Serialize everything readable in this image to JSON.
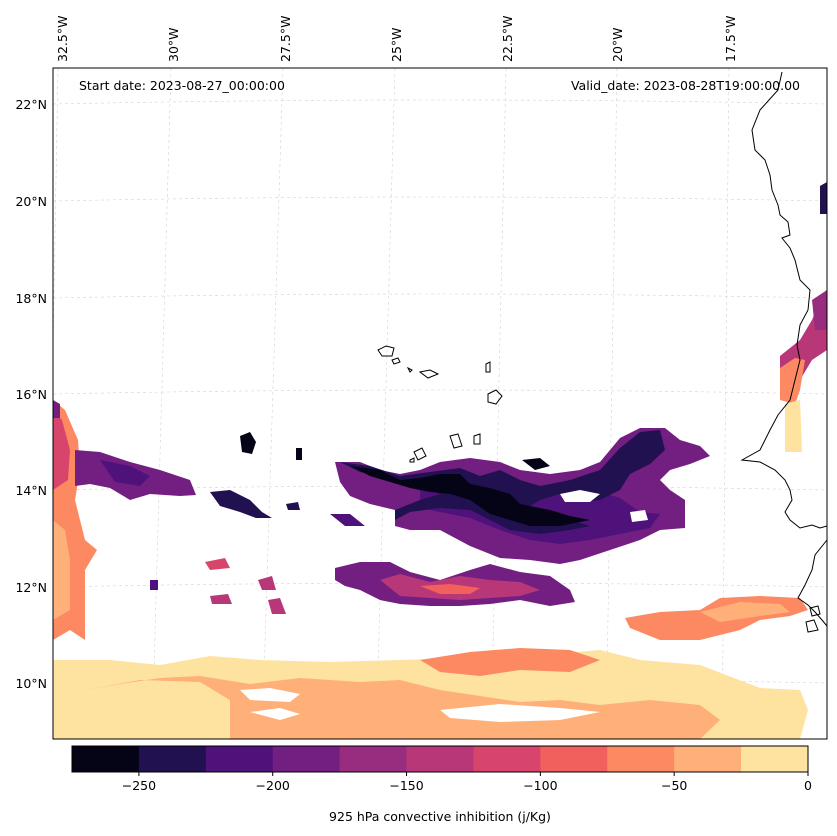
{
  "annotations": {
    "start_date": "Start date: 2023-08-27_00:00:00",
    "valid_date": "Valid_date: 2023-08-28T19:00:00.00"
  },
  "axes": {
    "lon_labels": [
      "32.5°W",
      "30°W",
      "27.5°W",
      "25°W",
      "22.5°W",
      "20°W",
      "17.5°W"
    ],
    "lat_labels": [
      "22°N",
      "20°N",
      "18°N",
      "16°N",
      "14°N",
      "12°N",
      "10°N"
    ]
  },
  "colorbar": {
    "label": "925 hPa convective inhibition (j/Kg)",
    "tick_labels": [
      "−250",
      "−200",
      "−150",
      "−100",
      "−50",
      "0"
    ],
    "levels": [
      -275,
      -250,
      -225,
      -200,
      -175,
      -150,
      -125,
      -100,
      -75,
      -50,
      -25,
      0
    ],
    "colors": [
      "#050416",
      "#221150",
      "#4f127b",
      "#721f81",
      "#982d80",
      "#b73779",
      "#d8456c",
      "#f1605d",
      "#fc8961",
      "#feb078",
      "#fde2a0"
    ]
  },
  "style": {
    "coastline_color": "#000000",
    "gridline_color": "#c8c8c8"
  }
}
